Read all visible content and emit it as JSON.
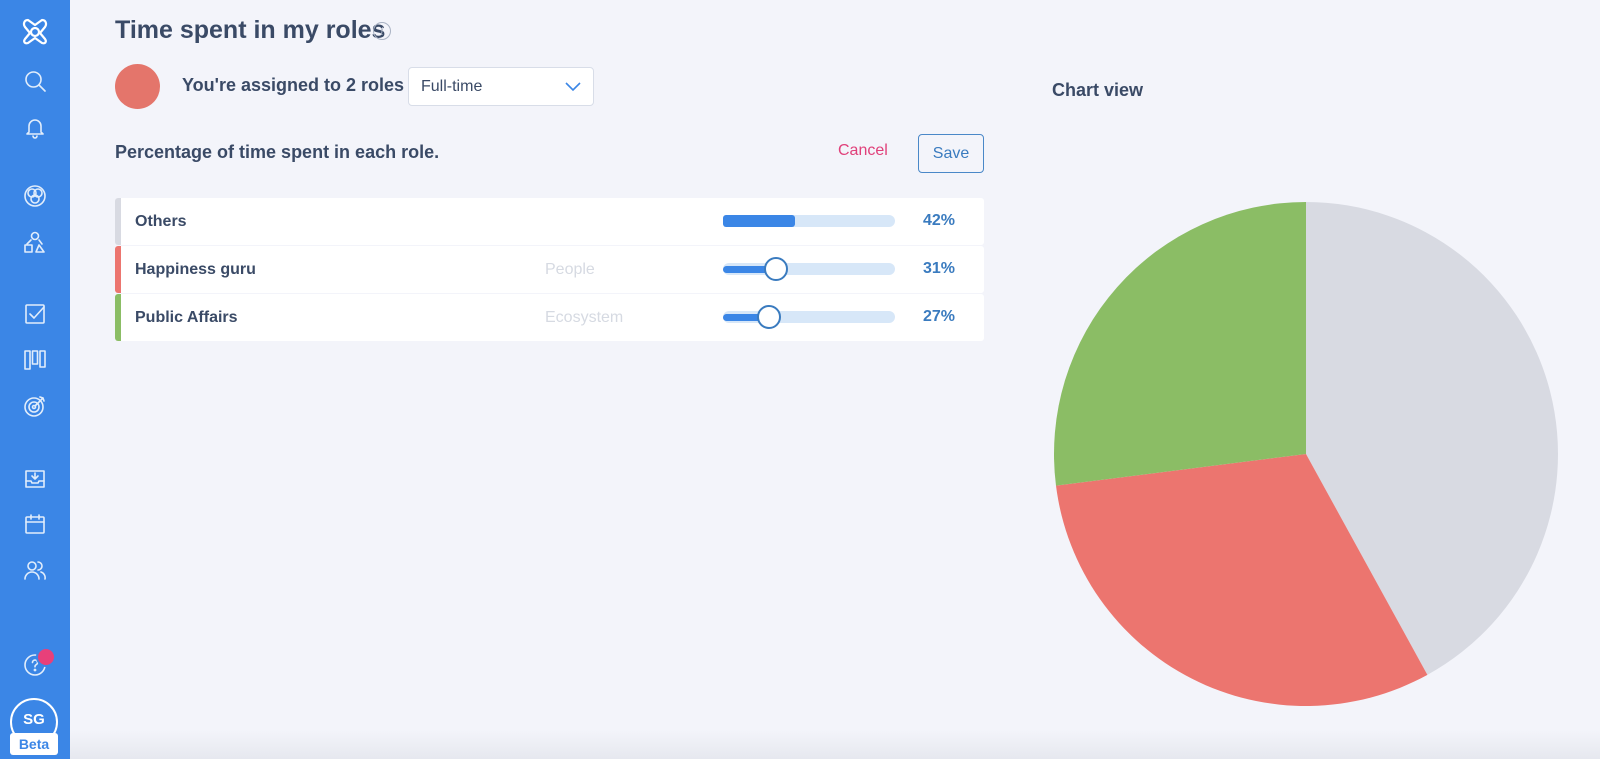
{
  "sidebar": {
    "icons": [
      "logo-icon",
      "search-icon",
      "bell-icon",
      "circles-icon",
      "shapes-icon",
      "checkbox-icon",
      "board-icon",
      "target-icon",
      "inbox-icon",
      "calendar-icon",
      "people-icon",
      "help-icon"
    ],
    "user_initials": "SG",
    "beta_label": "Beta"
  },
  "header": {
    "title": "Time spent in my roles",
    "info_icon": "info-icon"
  },
  "assignment": {
    "text": "You're assigned to 2 roles",
    "select_value": "Full-time"
  },
  "roles_section": {
    "heading": "Percentage of time spent in each role.",
    "cancel_label": "Cancel",
    "save_label": "Save",
    "rows": [
      {
        "label": "Others",
        "sub": "",
        "percent_label": "42%",
        "value": 42,
        "color": "#d8dae2",
        "has_thumb": false
      },
      {
        "label": "Happiness guru",
        "sub": "People",
        "percent_label": "31%",
        "value": 31,
        "color": "#ec756f",
        "has_thumb": true
      },
      {
        "label": "Public Affairs",
        "sub": "Ecosystem",
        "percent_label": "27%",
        "value": 27,
        "color": "#8bbd65",
        "has_thumb": true
      }
    ]
  },
  "chart_view": {
    "title": "Chart view"
  },
  "chart_data": {
    "type": "pie",
    "categories": [
      "Others",
      "Happiness guru",
      "Public Affairs"
    ],
    "values": [
      42,
      31,
      27
    ],
    "colors": [
      "#d8dae2",
      "#ec756f",
      "#8bbd65"
    ],
    "title": "Chart view"
  }
}
